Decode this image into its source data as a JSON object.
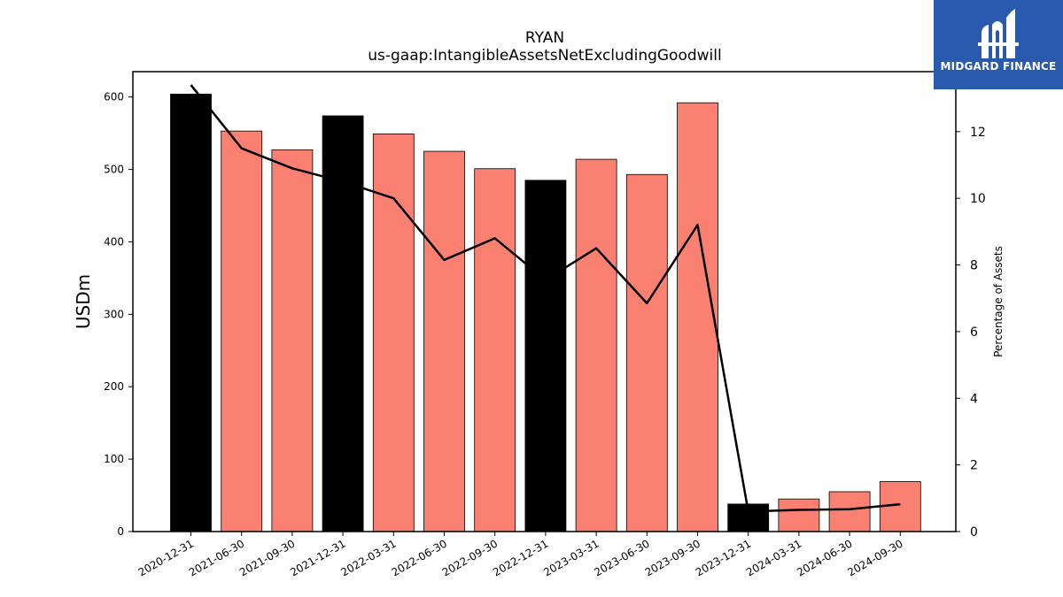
{
  "chart_data": {
    "type": "bar",
    "title": "RYAN",
    "subtitle": "us-gaap:IntangibleAssetsNetExcludingGoodwill",
    "ylabel": "USDm",
    "ylabel_right": "Percentage of Assets",
    "ylim": [
      0,
      635
    ],
    "ylim_right": [
      0,
      13.8
    ],
    "yticks": [
      0,
      100,
      200,
      300,
      400,
      500,
      600
    ],
    "yticks_right": [
      0,
      2,
      4,
      6,
      8,
      10,
      12
    ],
    "categories": [
      "2020-12-31",
      "2021-06-30",
      "2021-09-30",
      "2021-12-31",
      "2022-03-31",
      "2022-06-30",
      "2022-09-30",
      "2022-12-31",
      "2023-03-31",
      "2023-06-30",
      "2023-09-30",
      "2023-12-31",
      "2024-03-31",
      "2024-06-30",
      "2024-09-30"
    ],
    "series": [
      {
        "type": "bar",
        "values": [
          604,
          553,
          527,
          574,
          549,
          525,
          501,
          485,
          514,
          493,
          592,
          38,
          45,
          55,
          69
        ],
        "colors": [
          "#000000",
          "#fa8072",
          "#fa8072",
          "#000000",
          "#fa8072",
          "#fa8072",
          "#fa8072",
          "#000000",
          "#fa8072",
          "#fa8072",
          "#fa8072",
          "#000000",
          "#fa8072",
          "#fa8072",
          "#fa8072"
        ]
      },
      {
        "type": "line",
        "axis": "right",
        "color": "#000000",
        "values": [
          13.4,
          11.5,
          10.9,
          10.5,
          10.0,
          8.15,
          8.8,
          7.55,
          8.5,
          6.85,
          9.2,
          0.6,
          0.65,
          0.67,
          0.82
        ]
      }
    ]
  },
  "logo": {
    "text": "MIDGARD FINANCE",
    "color": "#2a5aad"
  }
}
